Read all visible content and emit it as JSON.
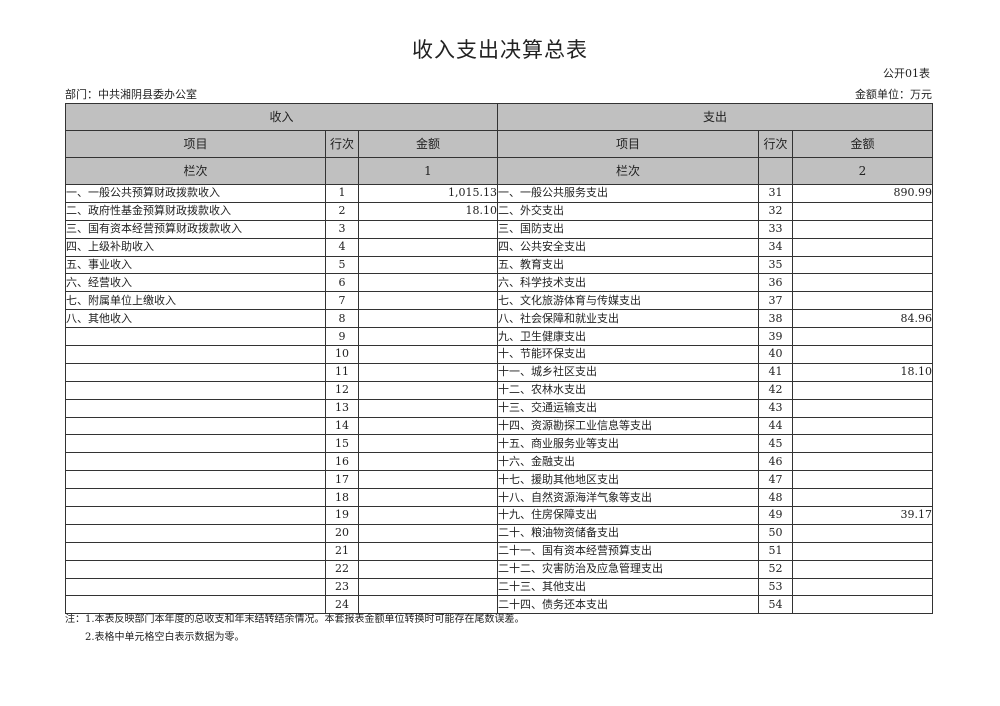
{
  "title": "收入支出决算总表",
  "table_code": "公开01表",
  "department": "部门：中共湘阴县委办公室",
  "unit": "金额单位：万元",
  "headers": {
    "income": "收入",
    "expense": "支出",
    "item": "项目",
    "row_no": "行次",
    "amount": "金额",
    "column_no": "栏次",
    "income_col": "1",
    "expense_col": "2"
  },
  "rows": [
    {
      "in_item": "一、一般公共预算财政拨款收入",
      "in_no": "1",
      "in_amt": "1,015.13",
      "ex_item": "一、一般公共服务支出",
      "ex_no": "31",
      "ex_amt": "890.99"
    },
    {
      "in_item": "二、政府性基金预算财政拨款收入",
      "in_no": "2",
      "in_amt": "18.10",
      "ex_item": "二、外交支出",
      "ex_no": "32",
      "ex_amt": ""
    },
    {
      "in_item": "三、国有资本经营预算财政拨款收入",
      "in_no": "3",
      "in_amt": "",
      "ex_item": "三、国防支出",
      "ex_no": "33",
      "ex_amt": ""
    },
    {
      "in_item": "四、上级补助收入",
      "in_no": "4",
      "in_amt": "",
      "ex_item": "四、公共安全支出",
      "ex_no": "34",
      "ex_amt": ""
    },
    {
      "in_item": "五、事业收入",
      "in_no": "5",
      "in_amt": "",
      "ex_item": "五、教育支出",
      "ex_no": "35",
      "ex_amt": ""
    },
    {
      "in_item": "六、经营收入",
      "in_no": "6",
      "in_amt": "",
      "ex_item": "六、科学技术支出",
      "ex_no": "36",
      "ex_amt": ""
    },
    {
      "in_item": "七、附属单位上缴收入",
      "in_no": "7",
      "in_amt": "",
      "ex_item": "七、文化旅游体育与传媒支出",
      "ex_no": "37",
      "ex_amt": ""
    },
    {
      "in_item": "八、其他收入",
      "in_no": "8",
      "in_amt": "",
      "ex_item": "八、社会保障和就业支出",
      "ex_no": "38",
      "ex_amt": "84.96"
    },
    {
      "in_item": "",
      "in_no": "9",
      "in_amt": "",
      "ex_item": "九、卫生健康支出",
      "ex_no": "39",
      "ex_amt": ""
    },
    {
      "in_item": "",
      "in_no": "10",
      "in_amt": "",
      "ex_item": "十、节能环保支出",
      "ex_no": "40",
      "ex_amt": ""
    },
    {
      "in_item": "",
      "in_no": "11",
      "in_amt": "",
      "ex_item": "十一、城乡社区支出",
      "ex_no": "41",
      "ex_amt": "18.10"
    },
    {
      "in_item": "",
      "in_no": "12",
      "in_amt": "",
      "ex_item": "十二、农林水支出",
      "ex_no": "42",
      "ex_amt": ""
    },
    {
      "in_item": "",
      "in_no": "13",
      "in_amt": "",
      "ex_item": "十三、交通运输支出",
      "ex_no": "43",
      "ex_amt": ""
    },
    {
      "in_item": "",
      "in_no": "14",
      "in_amt": "",
      "ex_item": "十四、资源勘探工业信息等支出",
      "ex_no": "44",
      "ex_amt": ""
    },
    {
      "in_item": "",
      "in_no": "15",
      "in_amt": "",
      "ex_item": "十五、商业服务业等支出",
      "ex_no": "45",
      "ex_amt": ""
    },
    {
      "in_item": "",
      "in_no": "16",
      "in_amt": "",
      "ex_item": "十六、金融支出",
      "ex_no": "46",
      "ex_amt": ""
    },
    {
      "in_item": "",
      "in_no": "17",
      "in_amt": "",
      "ex_item": "十七、援助其他地区支出",
      "ex_no": "47",
      "ex_amt": ""
    },
    {
      "in_item": "",
      "in_no": "18",
      "in_amt": "",
      "ex_item": "十八、自然资源海洋气象等支出",
      "ex_no": "48",
      "ex_amt": ""
    },
    {
      "in_item": "",
      "in_no": "19",
      "in_amt": "",
      "ex_item": "十九、住房保障支出",
      "ex_no": "49",
      "ex_amt": "39.17"
    },
    {
      "in_item": "",
      "in_no": "20",
      "in_amt": "",
      "ex_item": "二十、粮油物资储备支出",
      "ex_no": "50",
      "ex_amt": ""
    },
    {
      "in_item": "",
      "in_no": "21",
      "in_amt": "",
      "ex_item": "二十一、国有资本经营预算支出",
      "ex_no": "51",
      "ex_amt": ""
    },
    {
      "in_item": "",
      "in_no": "22",
      "in_amt": "",
      "ex_item": "二十二、灾害防治及应急管理支出",
      "ex_no": "52",
      "ex_amt": ""
    },
    {
      "in_item": "",
      "in_no": "23",
      "in_amt": "",
      "ex_item": "二十三、其他支出",
      "ex_no": "53",
      "ex_amt": ""
    },
    {
      "in_item": "",
      "in_no": "24",
      "in_amt": "",
      "ex_item": "二十四、债务还本支出",
      "ex_no": "54",
      "ex_amt": ""
    }
  ],
  "notes": [
    "注：1.本表反映部门本年度的总收支和年末结转结余情况。本套报表金额单位转换时可能存在尾数误差。",
    "　　2.表格中单元格空白表示数据为零。"
  ]
}
